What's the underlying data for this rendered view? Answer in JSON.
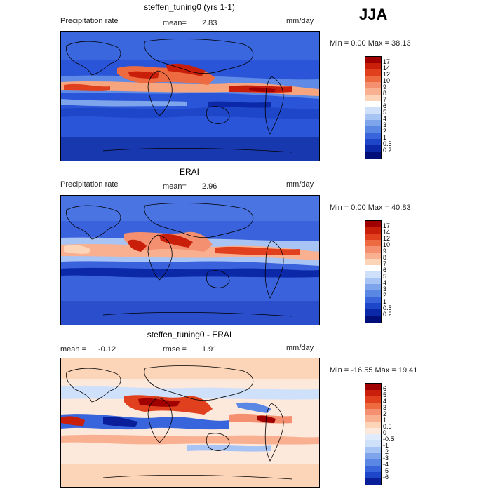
{
  "season": "JJA",
  "panels": [
    {
      "title": "steffen_tuning0 (yrs 1-1)",
      "left_label": "Precipitation rate",
      "mean_label": "mean=",
      "mean_value": "2.83",
      "units": "mm/day",
      "minmax": "Min =    0.00  Max =   38.13",
      "levels": [
        "17",
        "14",
        "12",
        "10",
        "9",
        "8",
        "7",
        "6",
        "5",
        "4",
        "3",
        "2",
        "1",
        "0.5",
        "0.2"
      ],
      "colors": [
        "#a00000",
        "#c81e0a",
        "#e0401e",
        "#ee6a40",
        "#f49070",
        "#f8b090",
        "#fcd4b8",
        "#ffffff",
        "#cfe0fb",
        "#a8c4f4",
        "#7ea4ec",
        "#5a86e4",
        "#3864dc",
        "#1e46c8",
        "#0a28a8",
        "#000e7a"
      ]
    },
    {
      "title": "ERAI",
      "left_label": "Precipitation rate",
      "mean_label": "mean=",
      "mean_value": "2.96",
      "units": "mm/day",
      "minmax": "Min =    0.00  Max =   40.83",
      "levels": [
        "17",
        "14",
        "12",
        "10",
        "9",
        "8",
        "7",
        "6",
        "5",
        "4",
        "3",
        "2",
        "1",
        "0.5",
        "0.2"
      ],
      "colors": [
        "#a00000",
        "#c81e0a",
        "#e0401e",
        "#ee6a40",
        "#f49070",
        "#f8b090",
        "#fcd4b8",
        "#ffffff",
        "#cfe0fb",
        "#a8c4f4",
        "#7ea4ec",
        "#5a86e4",
        "#3864dc",
        "#1e46c8",
        "#0a28a8",
        "#000e7a"
      ]
    },
    {
      "title": "steffen_tuning0 - ERAI",
      "mean_label": "mean =",
      "mean_value": "-0.12",
      "rmse_label": "rmse =",
      "rmse_value": "1.91",
      "units": "mm/day",
      "minmax": "Min = -16.55  Max =   19.41",
      "levels": [
        "6",
        "5",
        "4",
        "3",
        "2",
        "1",
        "0.5",
        "0",
        "-0.5",
        "-1",
        "-2",
        "-3",
        "-4",
        "-5",
        "-6"
      ],
      "colors": [
        "#a00000",
        "#c81e0a",
        "#e0401e",
        "#ee6a40",
        "#f49070",
        "#f8b090",
        "#fcd4b8",
        "#fde8dc",
        "#e0ecfb",
        "#cfe0fb",
        "#a8c4f4",
        "#7ea4ec",
        "#5a86e4",
        "#3864dc",
        "#1e46c8",
        "#0a1e9a"
      ]
    }
  ]
}
